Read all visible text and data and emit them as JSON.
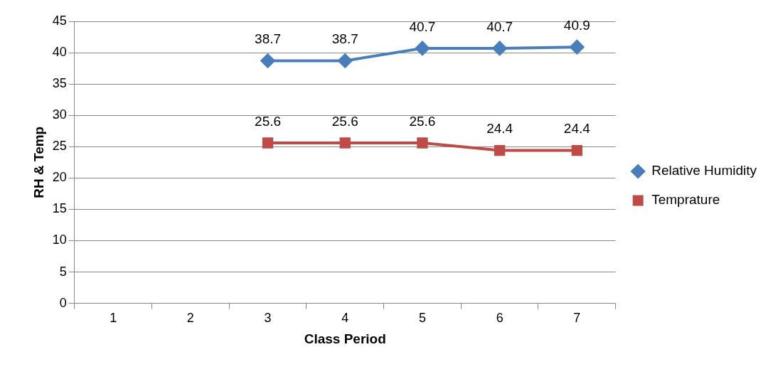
{
  "chart_data": {
    "type": "line",
    "xlabel": "Class Period",
    "ylabel": "RH & Temp",
    "categories": [
      "1",
      "2",
      "3",
      "4",
      "5",
      "6",
      "7"
    ],
    "series": [
      {
        "name": "Relative Humidity",
        "color": "#4a7ebb",
        "marker": "diamond",
        "values": [
          null,
          null,
          38.7,
          38.7,
          40.7,
          40.7,
          40.9
        ]
      },
      {
        "name": "Temprature",
        "color": "#be4b48",
        "marker": "square",
        "values": [
          null,
          null,
          25.6,
          25.6,
          25.6,
          24.4,
          24.4
        ]
      }
    ],
    "ylim": [
      0,
      45
    ],
    "yticks": [
      0,
      5,
      10,
      15,
      20,
      25,
      30,
      35,
      40,
      45
    ],
    "grid": "y",
    "legend": "right",
    "data_labels": true,
    "line_style": "solid"
  }
}
